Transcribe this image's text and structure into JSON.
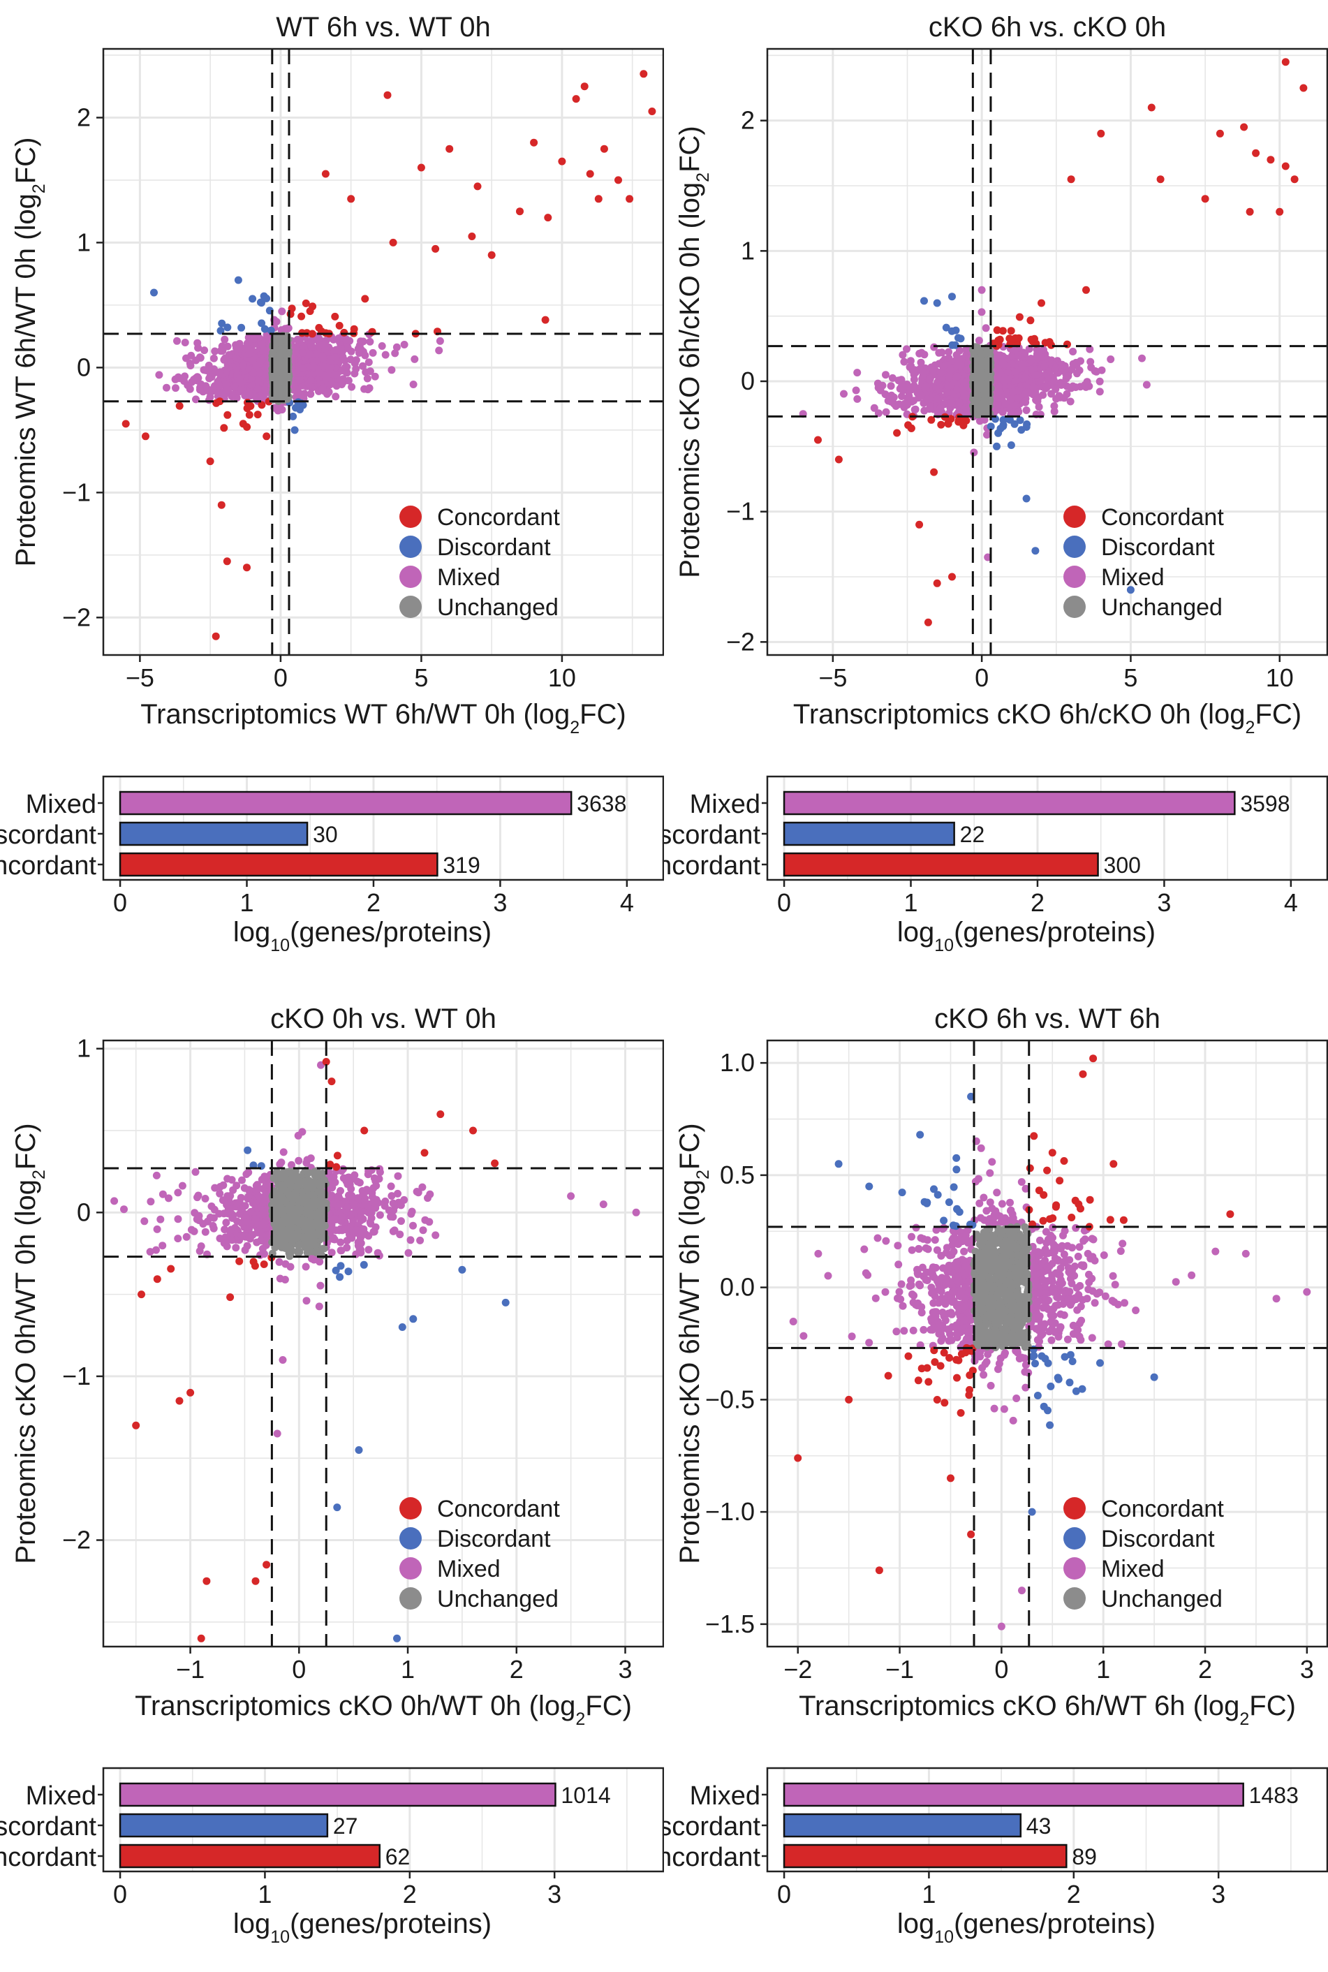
{
  "colors": {
    "concordant": "#d62728",
    "discordant": "#4a6fbd",
    "mixed": "#c065b8",
    "unchanged": "#8c8c8c",
    "grid": "#e6e6e6",
    "dash": "#111111"
  },
  "legend": [
    "Concordant",
    "Discordant",
    "Mixed",
    "Unchanged"
  ],
  "bar_categories": [
    "Mixed",
    "Discordant",
    "Concordant"
  ],
  "bar_xlabel": "log10(genes/proteins)",
  "chart_data": [
    {
      "type": "scatter",
      "title": "WT 6h vs. WT 0h",
      "xlabel": "Transcriptomics WT 6h/WT 0h (log2FC)",
      "ylabel": "Proteomics WT 6h/WT 0h (log2FC)",
      "xlim": [
        -6.3,
        13.6
      ],
      "ylim": [
        -2.3,
        2.55
      ],
      "xticks": [
        -5,
        0,
        5,
        10
      ],
      "xtick_labels": [
        "−5",
        "0",
        "5",
        "10"
      ],
      "yticks": [
        -2,
        -1,
        0,
        1,
        2
      ],
      "ytick_labels": [
        "−2",
        "−1",
        "0",
        "1",
        "2"
      ],
      "thresholds": {
        "x": [
          -0.3,
          0.3
        ],
        "y": [
          -0.27,
          0.27
        ]
      },
      "seed": 11,
      "cloud": {
        "xsd": 1.2,
        "ysd": 0.12,
        "n": 1300
      },
      "points": [
        [
          -5.5,
          -0.45
        ],
        [
          -4.8,
          -0.55
        ],
        [
          -4.5,
          0.6
        ],
        [
          -1.5,
          0.7
        ],
        [
          -1.0,
          0.55
        ],
        [
          -2.5,
          -0.75
        ],
        [
          -2.1,
          -1.1
        ],
        [
          -1.9,
          -1.55
        ],
        [
          -1.2,
          -1.6
        ],
        [
          -2.3,
          -2.15
        ],
        [
          1.6,
          1.55
        ],
        [
          3.8,
          2.18
        ],
        [
          2.5,
          1.35
        ],
        [
          4.0,
          1.0
        ],
        [
          5.0,
          1.6
        ],
        [
          6.0,
          1.75
        ],
        [
          7.0,
          1.45
        ],
        [
          8.5,
          1.25
        ],
        [
          9.0,
          1.8
        ],
        [
          10.8,
          2.25
        ],
        [
          10.5,
          2.15
        ],
        [
          12.9,
          2.35
        ],
        [
          13.2,
          2.05
        ],
        [
          11.5,
          1.75
        ],
        [
          11.0,
          1.55
        ],
        [
          12.0,
          1.5
        ],
        [
          11.3,
          1.35
        ],
        [
          12.4,
          1.35
        ],
        [
          10.0,
          1.65
        ],
        [
          9.5,
          1.2
        ],
        [
          5.5,
          0.95
        ],
        [
          6.8,
          1.05
        ],
        [
          7.5,
          0.9
        ],
        [
          3.0,
          0.55
        ],
        [
          0.5,
          -0.5
        ],
        [
          0.8,
          -0.3
        ],
        [
          -0.5,
          -0.55
        ]
      ],
      "bars": {
        "values": [
          3638,
          30,
          319
        ],
        "labels": [
          "3638",
          "30",
          "319"
        ],
        "xlim": [
          0,
          4
        ],
        "xticks": [
          0,
          1,
          2,
          3,
          4
        ]
      }
    },
    {
      "type": "scatter",
      "title": "cKO 6h vs. cKO 0h",
      "xlabel": "Transcriptomics cKO 6h/cKO 0h (log2FC)",
      "ylabel": "Proteomics cKO 6h/cKO 0h (log2FC)",
      "xlim": [
        -7.2,
        11.6
      ],
      "ylim": [
        -2.1,
        2.55
      ],
      "xticks": [
        -5,
        0,
        5,
        10
      ],
      "xtick_labels": [
        "−5",
        "0",
        "5",
        "10"
      ],
      "yticks": [
        -2,
        -1,
        0,
        1,
        2
      ],
      "ytick_labels": [
        "−2",
        "−1",
        "0",
        "1",
        "2"
      ],
      "thresholds": {
        "x": [
          -0.3,
          0.3
        ],
        "y": [
          -0.27,
          0.27
        ]
      },
      "seed": 23,
      "cloud": {
        "xsd": 1.2,
        "ysd": 0.12,
        "n": 1300
      },
      "points": [
        [
          -6.0,
          -0.25
        ],
        [
          -5.5,
          -0.45
        ],
        [
          -4.8,
          -0.6
        ],
        [
          -1.5,
          0.6
        ],
        [
          -1.0,
          0.65
        ],
        [
          0.0,
          0.7
        ],
        [
          -2.1,
          -1.1
        ],
        [
          -1.5,
          -1.55
        ],
        [
          -1.0,
          -1.5
        ],
        [
          -1.8,
          -1.85
        ],
        [
          0.2,
          -1.35
        ],
        [
          1.8,
          -1.3
        ],
        [
          5.0,
          -1.6
        ],
        [
          10.2,
          2.45
        ],
        [
          10.8,
          2.25
        ],
        [
          5.7,
          2.1
        ],
        [
          4.0,
          1.9
        ],
        [
          8.0,
          1.9
        ],
        [
          8.8,
          1.95
        ],
        [
          9.7,
          1.7
        ],
        [
          10.2,
          1.65
        ],
        [
          10.5,
          1.55
        ],
        [
          9.2,
          1.75
        ],
        [
          7.5,
          1.4
        ],
        [
          9.0,
          1.3
        ],
        [
          10.0,
          1.3
        ],
        [
          6.0,
          1.55
        ],
        [
          3.0,
          1.55
        ],
        [
          2.0,
          0.6
        ],
        [
          3.5,
          0.7
        ],
        [
          0.5,
          -0.5
        ],
        [
          1.5,
          -0.9
        ]
      ],
      "bars": {
        "values": [
          3598,
          22,
          300
        ],
        "labels": [
          "3598",
          "22",
          "300"
        ],
        "xlim": [
          0,
          4
        ],
        "xticks": [
          0,
          1,
          2,
          3,
          4
        ]
      }
    },
    {
      "type": "scatter",
      "title": "cKO 0h vs. WT 0h",
      "xlabel": "Transcriptomics cKO 0h/WT 0h (log2FC)",
      "ylabel": "Proteomics cKO 0h/WT 0h (log2FC)",
      "xlim": [
        -1.8,
        3.35
      ],
      "ylim": [
        -2.65,
        1.05
      ],
      "xticks": [
        -1,
        0,
        1,
        2,
        3
      ],
      "xtick_labels": [
        "−1",
        "0",
        "1",
        "2",
        "3"
      ],
      "yticks": [
        -2,
        -1,
        0,
        1
      ],
      "ytick_labels": [
        "−2",
        "−1",
        "0",
        "1"
      ],
      "thresholds": {
        "x": [
          -0.25,
          0.25
        ],
        "y": [
          -0.27,
          0.27
        ]
      },
      "seed": 37,
      "cloud": {
        "xsd": 0.38,
        "ysd": 0.12,
        "n": 950
      },
      "points": [
        [
          -1.5,
          -1.3
        ],
        [
          -1.45,
          -0.5
        ],
        [
          -1.1,
          -1.15
        ],
        [
          -1.0,
          -1.1
        ],
        [
          -0.85,
          -2.25
        ],
        [
          -0.4,
          -2.25
        ],
        [
          -0.9,
          -2.6
        ],
        [
          -0.3,
          -2.15
        ],
        [
          -0.2,
          -1.35
        ],
        [
          -0.15,
          -0.9
        ],
        [
          0.2,
          0.9
        ],
        [
          0.25,
          0.92
        ],
        [
          0.3,
          0.8
        ],
        [
          0.6,
          0.5
        ],
        [
          1.3,
          0.6
        ],
        [
          1.6,
          0.5
        ],
        [
          0.55,
          -1.45
        ],
        [
          0.35,
          -1.8
        ],
        [
          0.9,
          -2.6
        ],
        [
          1.05,
          -0.65
        ],
        [
          0.95,
          -0.7
        ],
        [
          1.9,
          -0.55
        ],
        [
          2.5,
          0.1
        ],
        [
          3.1,
          0.0
        ],
        [
          2.8,
          0.05
        ],
        [
          -1.7,
          0.07
        ],
        [
          1.8,
          0.3
        ],
        [
          1.5,
          -0.35
        ]
      ],
      "bars": {
        "values": [
          1014,
          27,
          62
        ],
        "labels": [
          "1014",
          "27",
          "62"
        ],
        "xlim": [
          0,
          3.5
        ],
        "xticks": [
          0,
          1,
          2,
          3
        ]
      }
    },
    {
      "type": "scatter",
      "title": "cKO 6h vs. WT 6h",
      "xlabel": "Transcriptomics cKO 6h/WT 6h (log2FC)",
      "ylabel": "Proteomics cKO 6h/WT 6h (log2FC)",
      "xlim": [
        -2.3,
        3.2
      ],
      "ylim": [
        -1.6,
        1.1
      ],
      "xticks": [
        -2,
        -1,
        0,
        1,
        2,
        3
      ],
      "xtick_labels": [
        "−2",
        "−1",
        "0",
        "1",
        "2",
        "3"
      ],
      "yticks": [
        -1.5,
        -1.0,
        -0.5,
        0,
        0.5,
        1.0
      ],
      "ytick_labels": [
        "−1.5",
        "−1.0",
        "−0.5",
        "0.0",
        "0.5",
        "1.0"
      ],
      "thresholds": {
        "x": [
          -0.27,
          0.27
        ],
        "y": [
          -0.27,
          0.27
        ]
      },
      "seed": 53,
      "cloud": {
        "xsd": 0.4,
        "ysd": 0.16,
        "n": 1300
      },
      "points": [
        [
          -2.0,
          -0.76
        ],
        [
          -1.2,
          -1.26
        ],
        [
          -1.6,
          0.55
        ],
        [
          -1.3,
          0.45
        ],
        [
          -0.8,
          0.68
        ],
        [
          -0.2,
          0.62
        ],
        [
          -0.3,
          0.85
        ],
        [
          0.8,
          0.95
        ],
        [
          0.9,
          1.02
        ],
        [
          1.1,
          0.55
        ],
        [
          0.5,
          0.6
        ],
        [
          -0.5,
          -0.85
        ],
        [
          0.3,
          -1.0
        ],
        [
          0.2,
          -1.35
        ],
        [
          -0.3,
          -1.1
        ],
        [
          0.0,
          -1.51
        ],
        [
          1.5,
          -0.4
        ],
        [
          2.4,
          0.15
        ],
        [
          2.7,
          -0.05
        ],
        [
          3.0,
          -0.02
        ],
        [
          -1.8,
          0.15
        ],
        [
          1.2,
          0.3
        ],
        [
          -1.5,
          -0.5
        ]
      ],
      "bars": {
        "values": [
          1483,
          43,
          89
        ],
        "labels": [
          "1483",
          "43",
          "89"
        ],
        "xlim": [
          0,
          3.5
        ],
        "xticks": [
          0,
          1,
          2,
          3
        ]
      }
    }
  ]
}
